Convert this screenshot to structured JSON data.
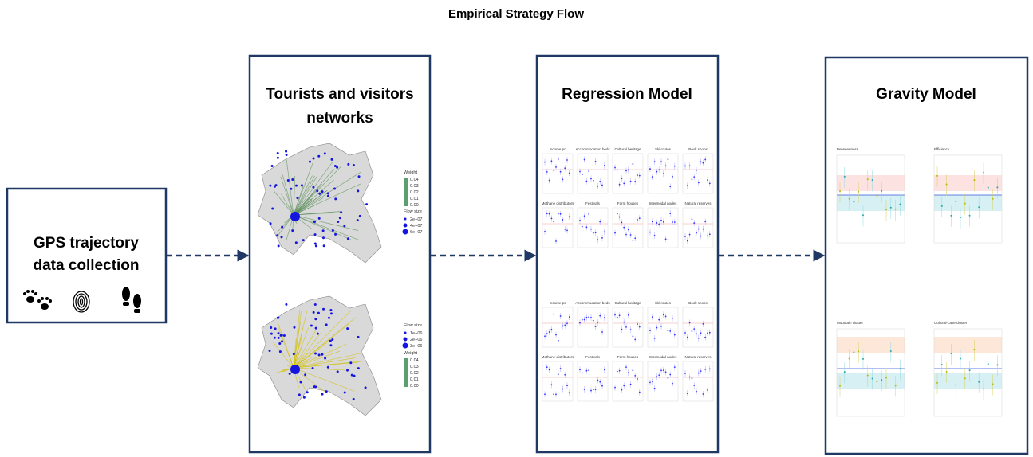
{
  "title": "Empirical Strategy Flow",
  "nodes": [
    {
      "label": [
        "GPS trajectory",
        "data collection"
      ]
    },
    {
      "label": [
        "Tourists and visitors",
        "networks"
      ],
      "maps": [
        {
          "legends": [
            {
              "title": "Weight",
              "items": [
                "0.04",
                "0.03",
                "0.02",
                "0.01",
                "0.00"
              ]
            },
            {
              "title": "Flow size",
              "items": [
                "2e+07",
                "4e+07",
                "6e+07"
              ]
            }
          ]
        },
        {
          "legends": [
            {
              "title": "Flow size",
              "items": [
                "1e+06",
                "2e+06",
                "3e+06"
              ]
            },
            {
              "title": "Weight",
              "items": [
                "0.04",
                "0.03",
                "0.02",
                "0.01",
                "0.00"
              ]
            }
          ]
        }
      ]
    },
    {
      "label": [
        "Regression Model"
      ],
      "figures": [
        {
          "panels": [
            "Income pc",
            "Accommodation beds",
            "Cultural heritage",
            "Ski routes",
            "Book shops",
            "Methane distributors",
            "Festivals",
            "Farm houses",
            "Intermodal nodes",
            "Natural reserves"
          ]
        },
        {
          "panels": [
            "Income pc",
            "Accommodation beds",
            "Cultural heritage",
            "Ski routes",
            "Book shops",
            "Methane distributors",
            "Festivals",
            "Farm houses",
            "Intermodal nodes",
            "Natural reserves"
          ]
        }
      ]
    },
    {
      "label": [
        "Gravity Model"
      ],
      "panels": [
        "Betweenness",
        "Efficiency",
        "Mountain cluster",
        "Cultural-Lake cluster"
      ]
    }
  ]
}
